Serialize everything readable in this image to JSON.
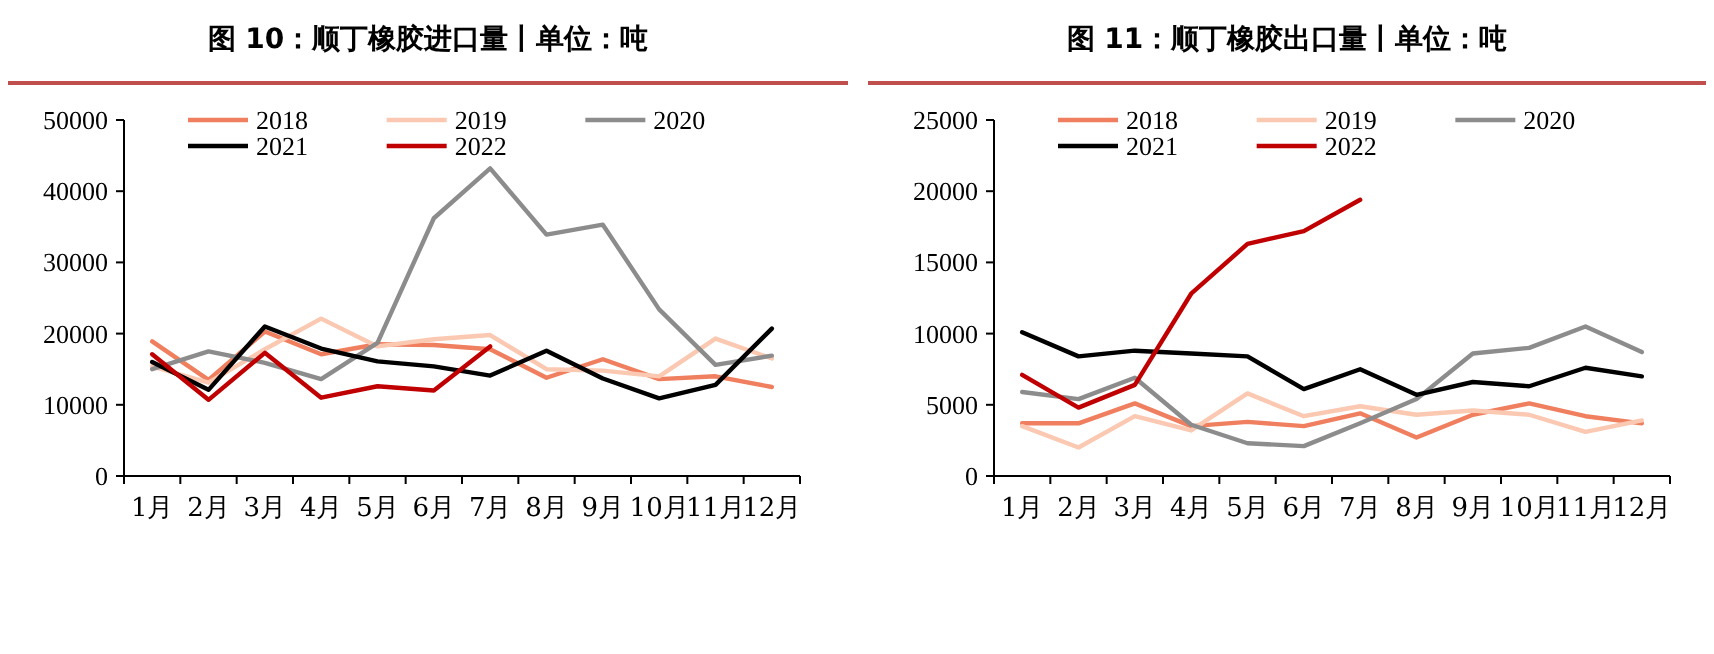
{
  "chart_data": [
    {
      "type": "line",
      "title": "图 10：顺丁橡胶进口量丨单位：吨",
      "categories": [
        "1月",
        "2月",
        "3月",
        "4月",
        "5月",
        "6月",
        "7月",
        "8月",
        "9月",
        "10月",
        "11月",
        "12月"
      ],
      "ylim": [
        0,
        50000
      ],
      "yticks": [
        0,
        10000,
        20000,
        30000,
        40000,
        50000
      ],
      "legend": "top",
      "grid": false,
      "marker": "none",
      "line_style": "solid",
      "series": [
        {
          "name": "2018",
          "color": "#ef7f5e",
          "values": [
            18900,
            13500,
            20300,
            17100,
            18500,
            18400,
            17800,
            13800,
            16400,
            13600,
            14000,
            12500
          ]
        },
        {
          "name": "2019",
          "color": "#fbc8b2",
          "values": [
            15400,
            13100,
            17800,
            22100,
            18200,
            19200,
            19800,
            15000,
            14800,
            14000,
            19300,
            16500
          ]
        },
        {
          "name": "2020",
          "color": "#8c8c8c",
          "values": [
            15000,
            17500,
            15900,
            13600,
            18700,
            36200,
            43200,
            33900,
            35300,
            23400,
            15600,
            16900
          ]
        },
        {
          "name": "2021",
          "color": "#000000",
          "values": [
            16000,
            12100,
            21000,
            17900,
            16100,
            15400,
            14100,
            17600,
            13700,
            10900,
            12800,
            20700
          ]
        },
        {
          "name": "2022",
          "color": "#c00000",
          "values": [
            17100,
            10700,
            17300,
            11000,
            12600,
            12000,
            18200,
            null,
            null,
            null,
            null,
            null
          ]
        }
      ]
    },
    {
      "type": "line",
      "title": "图 11：顺丁橡胶出口量丨单位：吨",
      "categories": [
        "1月",
        "2月",
        "3月",
        "4月",
        "5月",
        "6月",
        "7月",
        "8月",
        "9月",
        "10月",
        "11月",
        "12月"
      ],
      "ylim": [
        0,
        25000
      ],
      "yticks": [
        0,
        5000,
        10000,
        15000,
        20000,
        25000
      ],
      "legend": "top",
      "grid": false,
      "marker": "none",
      "line_style": "solid",
      "series": [
        {
          "name": "2018",
          "color": "#ef7f5e",
          "values": [
            3700,
            3700,
            5100,
            3500,
            3800,
            3500,
            4400,
            2700,
            4300,
            5100,
            4200,
            3700
          ]
        },
        {
          "name": "2019",
          "color": "#fbc8b2",
          "values": [
            3500,
            2000,
            4200,
            3200,
            5800,
            4200,
            4900,
            4300,
            4600,
            4300,
            3100,
            3900
          ]
        },
        {
          "name": "2020",
          "color": "#8c8c8c",
          "values": [
            5900,
            5400,
            6900,
            3600,
            2300,
            2100,
            3700,
            5400,
            8600,
            9000,
            10500,
            8700
          ]
        },
        {
          "name": "2021",
          "color": "#000000",
          "values": [
            10100,
            8400,
            8800,
            8600,
            8400,
            6100,
            7500,
            5700,
            6600,
            6300,
            7600,
            7000
          ]
        },
        {
          "name": "2022",
          "color": "#c00000",
          "values": [
            7100,
            4800,
            6400,
            12800,
            16300,
            17200,
            19400,
            null,
            null,
            null,
            null,
            null
          ]
        }
      ]
    }
  ]
}
